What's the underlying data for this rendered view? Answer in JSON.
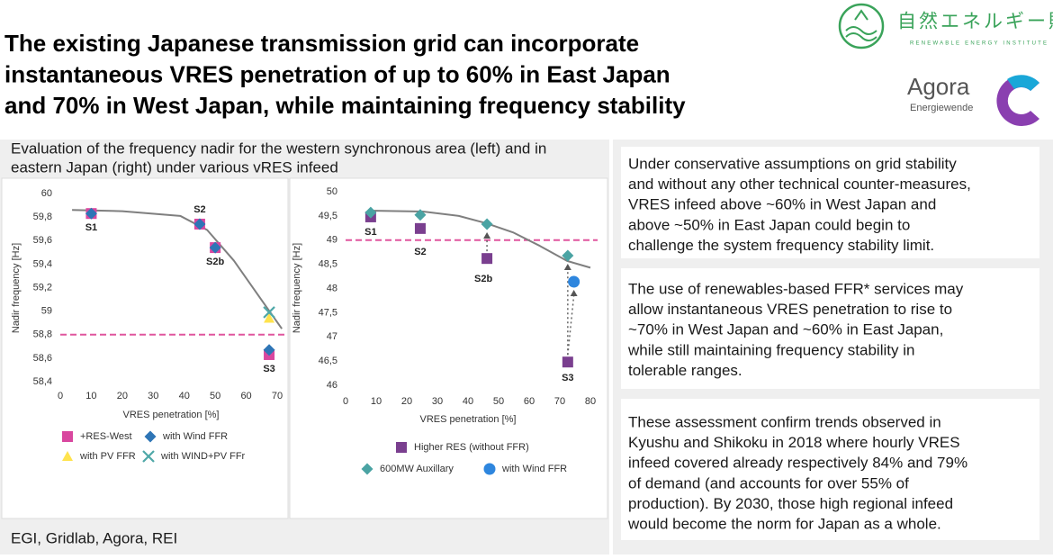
{
  "header": {
    "title_lines": [
      "The existing Japanese transmission grid can incorporate",
      "instantaneous VRES penetration of up to 60% in East Japan",
      "and 70% in West Japan, while maintaining frequency stability"
    ],
    "logo_jp": "自然エネルギー財団",
    "logo_jp_sub": "RENEWABLE ENERGY INSTITUTE",
    "logo_agora": "Agora",
    "logo_agora_sub": "Energiewende"
  },
  "panel": {
    "heading_lines": [
      "Evaluation of the frequency nadir for the western synchronous area (left) and in",
      "eastern Japan (right) under various vRES infeed"
    ],
    "source": "EGI, Gridlab, Agora, REI"
  },
  "chart_data": [
    {
      "type": "scatter",
      "xlabel": "VRES penetration [%]",
      "ylabel": "Nadir frequency [Hz]",
      "xlim": [
        0,
        70
      ],
      "xticks": [
        0,
        10,
        20,
        30,
        40,
        50,
        60,
        70
      ],
      "ylim": [
        58.4,
        60
      ],
      "yticks": [
        {
          "value": 58.4,
          "label": "58,4"
        },
        {
          "value": 58.6,
          "label": "58,6"
        },
        {
          "value": 58.8,
          "label": "58,8"
        },
        59,
        {
          "value": 59.2,
          "label": "59,2"
        },
        {
          "value": 59.4,
          "label": "59,4"
        },
        {
          "value": 59.6,
          "label": "59,6"
        },
        {
          "value": 59.8,
          "label": "59,8"
        },
        60
      ],
      "threshold": 58.8,
      "threshold_color": "#e0559e",
      "curve": {
        "color": "#7f7f7f",
        "x": [
          3.8,
          20,
          38.7,
          47.4,
          56,
          64.8,
          71.5
        ],
        "values": [
          59.86,
          59.85,
          59.81,
          59.69,
          59.43,
          59.1,
          58.85
        ]
      },
      "series": [
        {
          "name": "+RES-West",
          "color": "#d9479f",
          "marker": "square",
          "x": [
            10,
            45,
            50,
            67.4
          ],
          "values": [
            59.83,
            59.74,
            59.54,
            58.63
          ],
          "labels": [
            "S1",
            "S2",
            "S2b",
            "S3"
          ]
        },
        {
          "name": "with Wind FFR",
          "color": "#2e75b6",
          "marker": "diamond",
          "x": [
            10,
            45,
            50,
            67.4
          ],
          "values": [
            59.83,
            59.74,
            59.54,
            58.67
          ]
        },
        {
          "name": "with PV FFR",
          "color": "#ffe34d",
          "marker": "triangle",
          "x": [
            67.4
          ],
          "values": [
            58.94
          ]
        },
        {
          "name": "with WIND+PV FFr",
          "color": "#4fa8a8",
          "marker": "x",
          "x": [
            67.4
          ],
          "values": [
            58.99
          ]
        }
      ]
    },
    {
      "type": "scatter",
      "xlabel": "VRES penetration [%]",
      "ylabel": "Nadir frequency [Hz]",
      "xlim": [
        0,
        80
      ],
      "xticks": [
        0,
        10,
        20,
        30,
        40,
        50,
        60,
        70,
        80
      ],
      "ylim": [
        46,
        50
      ],
      "yticks": [
        46,
        {
          "value": 46.5,
          "label": "46,5"
        },
        47,
        {
          "value": 47.5,
          "label": "47,5"
        },
        48,
        {
          "value": 48.5,
          "label": "48,5"
        },
        49,
        {
          "value": 49.5,
          "label": "49,5"
        },
        50
      ],
      "threshold": 49,
      "threshold_color": "#e0559e",
      "curve": {
        "color": "#7f7f7f",
        "x": [
          7.6,
          25.3,
          37,
          45.9,
          54.7,
          63.5,
          72.4,
          80
        ],
        "values": [
          49.61,
          49.59,
          49.5,
          49.35,
          49.16,
          48.88,
          48.57,
          48.43
        ]
      },
      "series": [
        {
          "name": "Higher RES (without FFR)",
          "color": "#7a3f8f",
          "marker": "square",
          "x": [
            8.2,
            24.4,
            46.2,
            72.6
          ],
          "values": [
            49.48,
            49.24,
            48.62,
            46.48
          ],
          "labels": [
            "S1",
            "S2",
            "S2b",
            "S3"
          ]
        },
        {
          "name": "600MW Auxillary",
          "color": "#4aa3a3",
          "marker": "diamond",
          "x": [
            8.2,
            24.4,
            46.2,
            72.6
          ],
          "values": [
            49.57,
            49.52,
            49.33,
            48.68
          ]
        },
        {
          "name": "with Wind FFR",
          "color": "#2e86de",
          "marker": "circle",
          "x": [
            74.6
          ],
          "values": [
            48.14
          ]
        }
      ]
    }
  ],
  "notes": [
    {
      "lines": [
        "Under conservative assumptions on grid stability",
        "and without any other technical counter-measures,",
        "VRES infeed above ~60% in West Japan and",
        "above ~50% in East Japan could begin to",
        "challenge the system frequency stability limit."
      ]
    },
    {
      "lines": [
        "The use of renewables-based FFR* services may",
        "allow instantaneous VRES penetration to rise to",
        "~70% in West Japan and ~60% in East Japan,",
        "while still maintaining frequency stability in",
        "tolerable ranges."
      ]
    },
    {
      "lines": [
        "These assessment confirm trends observed in",
        "Kyushu and Shikoku in 2018 where hourly VRES",
        "infeed covered already respectively 84% and 79%",
        "of demand (and accounts for over 55% of",
        "production). By 2030, those high regional infeed",
        "would become the norm for Japan as a whole."
      ]
    }
  ]
}
